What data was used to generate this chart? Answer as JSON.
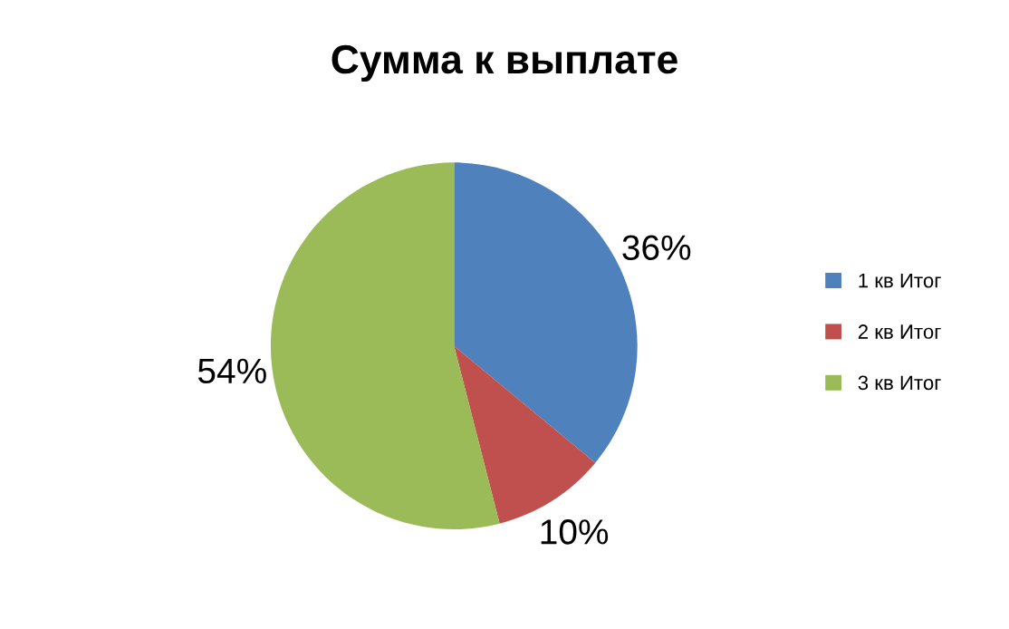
{
  "chart_data": {
    "type": "pie",
    "title": "Сумма к выплате",
    "categories": [
      "1 кв Итог",
      "2 кв Итог",
      "3 кв Итог"
    ],
    "values": [
      36,
      10,
      54
    ],
    "colors": [
      "#4f81bd",
      "#c0504d",
      "#9bbb59"
    ],
    "value_labels": [
      "36%",
      "10%",
      "54%"
    ],
    "legend": "right"
  }
}
